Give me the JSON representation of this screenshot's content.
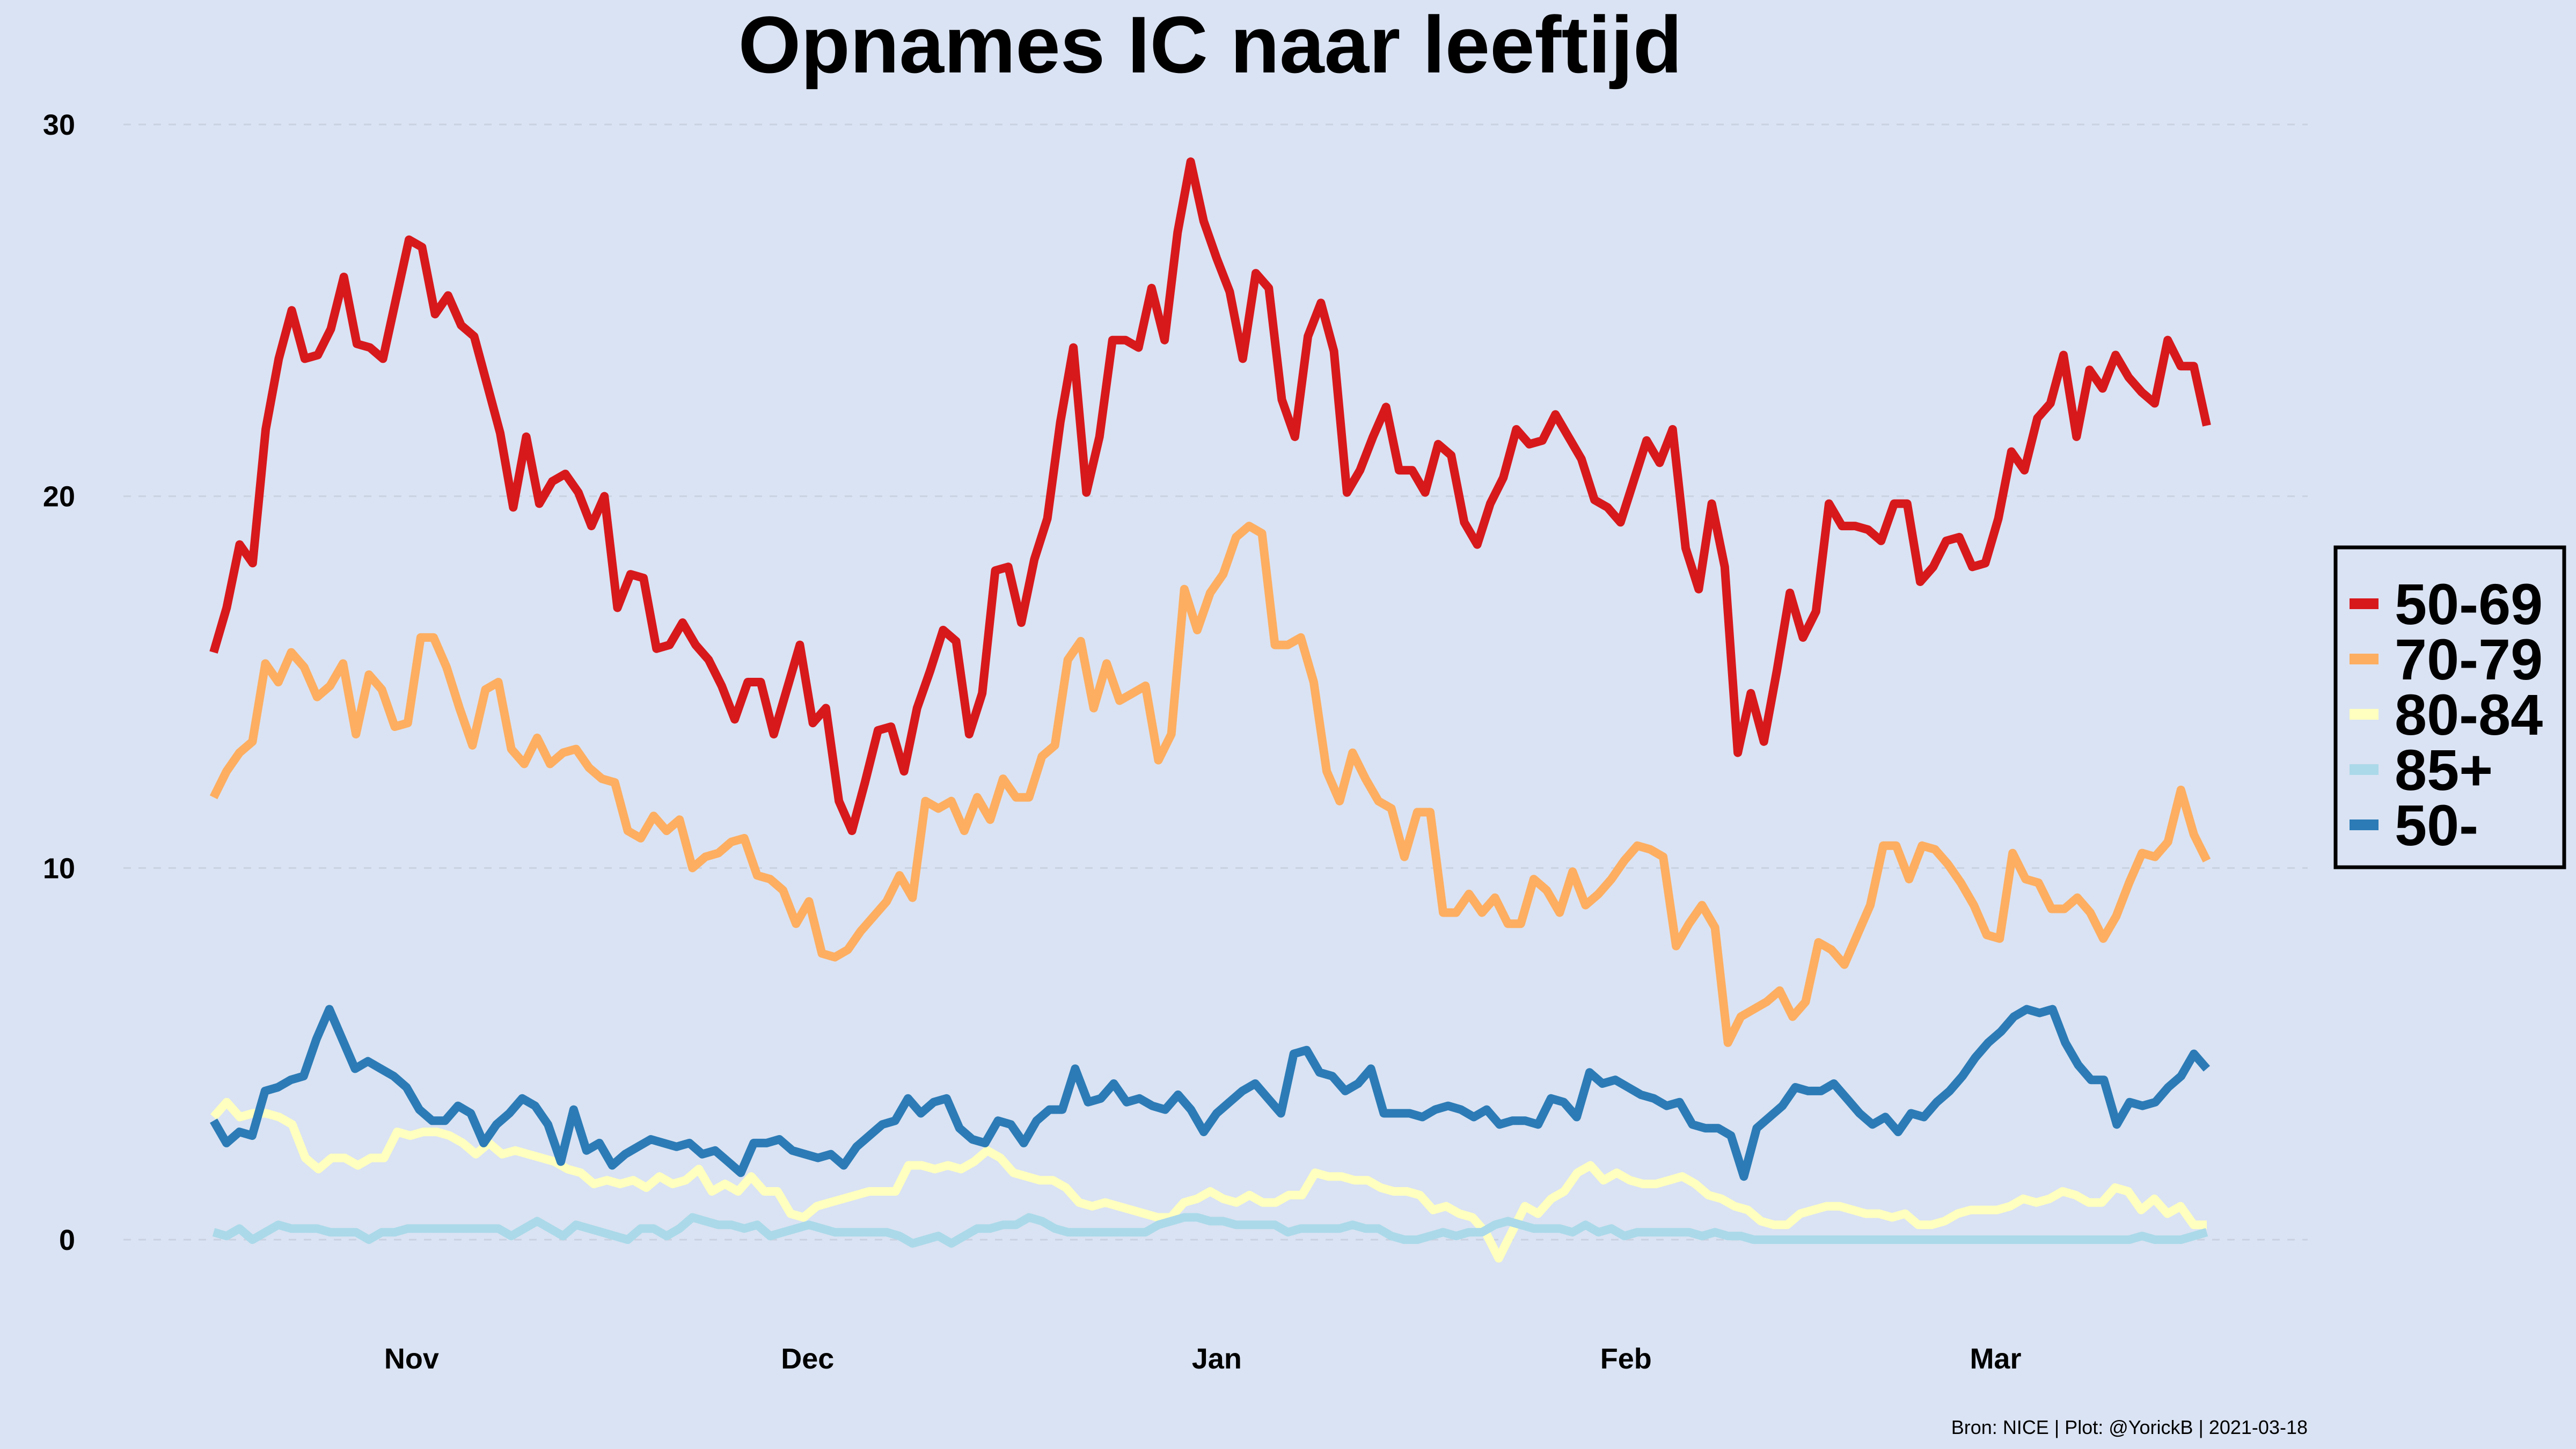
{
  "chart_data": {
    "type": "line",
    "title": "Opnames IC naar leeftijd",
    "caption": "Bron: NICE | Plot: @YorickB  |  2021-03-18",
    "xlabel": "",
    "ylabel": "",
    "ylim": [
      -2,
      32
    ],
    "yticks": [
      0,
      10,
      20,
      30
    ],
    "x_start": "2020-10-17",
    "x_end": "2021-03-17",
    "xticks": [
      {
        "label": "Nov",
        "date": "2020-11-01"
      },
      {
        "label": "Dec",
        "date": "2020-12-01"
      },
      {
        "label": "Jan",
        "date": "2021-01-01"
      },
      {
        "label": "Feb",
        "date": "2021-02-01"
      },
      {
        "label": "Mar",
        "date": "2021-03-01"
      }
    ],
    "grid": "horizontal dashed",
    "legend_position": "right",
    "series": [
      {
        "name": "50-69",
        "color": "#d7191c",
        "values": [
          15.8,
          17.0,
          18.7,
          18.2,
          21.8,
          23.7,
          25.0,
          23.7,
          23.8,
          24.5,
          25.9,
          24.1,
          24.0,
          23.7,
          25.3,
          26.9,
          26.7,
          24.9,
          25.4,
          24.6,
          24.3,
          23.0,
          21.7,
          19.7,
          21.6,
          19.8,
          20.4,
          20.6,
          20.1,
          19.2,
          20.0,
          17.0,
          17.9,
          17.8,
          15.9,
          16.0,
          16.6,
          16.0,
          15.6,
          14.9,
          14.0,
          15.0,
          15.0,
          13.6,
          14.8,
          16.0,
          13.9,
          14.3,
          11.8,
          11.0,
          12.3,
          13.7,
          13.8,
          12.6,
          14.3,
          15.3,
          16.4,
          16.1,
          13.6,
          14.7,
          18.0,
          18.1,
          16.6,
          18.3,
          19.4,
          22.0,
          24.0,
          20.1,
          21.6,
          24.2,
          24.2,
          24.0,
          25.6,
          24.2,
          27.1,
          29.0,
          27.4,
          26.4,
          25.5,
          23.7,
          26.0,
          25.6,
          22.6,
          21.6,
          24.3,
          25.2,
          23.9,
          20.1,
          20.7,
          21.6,
          22.4,
          20.7,
          20.7,
          20.1,
          21.4,
          21.1,
          19.3,
          18.7,
          19.8,
          20.5,
          21.8,
          21.4,
          21.5,
          22.2,
          21.6,
          21.0,
          19.9,
          19.7,
          19.3,
          20.4,
          21.5,
          20.9,
          21.8,
          18.6,
          17.5,
          19.8,
          18.1,
          13.1,
          14.7,
          13.4,
          15.3,
          17.4,
          16.2,
          16.9,
          19.8,
          19.2,
          19.2,
          19.1,
          18.8,
          19.8,
          19.8,
          17.7,
          18.1,
          18.8,
          18.9,
          18.1,
          18.2,
          19.4,
          21.2,
          20.7,
          22.1,
          22.5,
          23.8,
          21.6,
          23.4,
          22.9,
          23.8,
          23.2,
          22.8,
          22.5,
          24.2,
          23.5,
          23.5,
          21.9
        ]
      },
      {
        "name": "70-79",
        "color": "#fdae61",
        "values": [
          11.9,
          12.6,
          13.1,
          13.4,
          15.5,
          15.0,
          15.8,
          15.4,
          14.6,
          14.9,
          15.5,
          13.6,
          15.2,
          14.8,
          13.8,
          13.9,
          16.2,
          16.2,
          15.4,
          14.3,
          13.3,
          14.8,
          15.0,
          13.2,
          12.8,
          13.5,
          12.8,
          13.1,
          13.2,
          12.7,
          12.4,
          12.3,
          11.0,
          10.8,
          11.4,
          11.0,
          11.3,
          10.0,
          10.3,
          10.4,
          10.7,
          10.8,
          9.8,
          9.7,
          9.4,
          8.5,
          9.1,
          7.7,
          7.6,
          7.8,
          8.3,
          8.7,
          9.1,
          9.8,
          9.2,
          11.8,
          11.6,
          11.8,
          11.0,
          11.9,
          11.3,
          12.4,
          11.9,
          11.9,
          13.0,
          13.3,
          15.6,
          16.1,
          14.3,
          15.5,
          14.5,
          14.7,
          14.9,
          12.9,
          13.6,
          17.5,
          16.4,
          17.4,
          17.9,
          18.9,
          19.2,
          19.0,
          16.0,
          16.0,
          16.2,
          15.0,
          12.6,
          11.8,
          13.1,
          12.4,
          11.8,
          11.6,
          10.3,
          11.5,
          11.5,
          8.8,
          8.8,
          9.3,
          8.8,
          9.2,
          8.5,
          8.5,
          9.7,
          9.4,
          8.8,
          9.9,
          9.0,
          9.3,
          9.7,
          10.2,
          10.6,
          10.5,
          10.3,
          7.9,
          8.5,
          9.0,
          8.4,
          5.3,
          6.0,
          6.2,
          6.4,
          6.7,
          6.0,
          6.4,
          8.0,
          7.8,
          7.4,
          8.2,
          9.0,
          10.6,
          10.6,
          9.7,
          10.6,
          10.5,
          10.1,
          9.6,
          9.0,
          8.2,
          8.1,
          10.4,
          9.7,
          9.6,
          8.9,
          8.9,
          9.2,
          8.8,
          8.1,
          8.7,
          9.6,
          10.4,
          10.3,
          10.7,
          12.1,
          10.9,
          10.2
        ]
      },
      {
        "name": "80-84",
        "color": "#ffffbf",
        "values": [
          3.3,
          3.7,
          3.3,
          3.4,
          3.4,
          3.3,
          3.1,
          2.2,
          1.9,
          2.2,
          2.2,
          2.0,
          2.2,
          2.2,
          2.9,
          2.8,
          2.9,
          2.9,
          2.8,
          2.6,
          2.3,
          2.6,
          2.3,
          2.4,
          2.3,
          2.2,
          2.1,
          1.9,
          1.8,
          1.5,
          1.6,
          1.5,
          1.6,
          1.4,
          1.7,
          1.5,
          1.6,
          1.9,
          1.3,
          1.5,
          1.3,
          1.7,
          1.3,
          1.3,
          0.7,
          0.6,
          0.9,
          1.0,
          1.1,
          1.2,
          1.3,
          1.3,
          1.3,
          2.0,
          2.0,
          1.9,
          2.0,
          1.9,
          2.1,
          2.4,
          2.2,
          1.8,
          1.7,
          1.6,
          1.6,
          1.4,
          1.0,
          0.9,
          1.0,
          0.9,
          0.8,
          0.7,
          0.6,
          0.6,
          1.0,
          1.1,
          1.3,
          1.1,
          1.0,
          1.2,
          1.0,
          1.0,
          1.2,
          1.2,
          1.8,
          1.7,
          1.7,
          1.6,
          1.6,
          1.4,
          1.3,
          1.3,
          1.2,
          0.8,
          0.9,
          0.7,
          0.6,
          0.2,
          -0.5,
          0.2,
          0.9,
          0.7,
          1.1,
          1.3,
          1.8,
          2.0,
          1.6,
          1.8,
          1.6,
          1.5,
          1.5,
          1.6,
          1.7,
          1.5,
          1.2,
          1.1,
          0.9,
          0.8,
          0.5,
          0.4,
          0.4,
          0.7,
          0.8,
          0.9,
          0.9,
          0.8,
          0.7,
          0.7,
          0.6,
          0.7,
          0.4,
          0.4,
          0.5,
          0.7,
          0.8,
          0.8,
          0.8,
          0.9,
          1.1,
          1.0,
          1.1,
          1.3,
          1.2,
          1.0,
          1.0,
          1.4,
          1.3,
          0.8,
          1.1,
          0.7,
          0.9,
          0.4,
          0.4
        ]
      },
      {
        "name": "85+",
        "color": "#abd9e9",
        "values": [
          0.2,
          0.1,
          0.3,
          0.0,
          0.2,
          0.4,
          0.3,
          0.3,
          0.3,
          0.2,
          0.2,
          0.2,
          0.0,
          0.2,
          0.2,
          0.3,
          0.3,
          0.3,
          0.3,
          0.3,
          0.3,
          0.3,
          0.3,
          0.1,
          0.3,
          0.5,
          0.3,
          0.1,
          0.4,
          0.3,
          0.2,
          0.1,
          0.0,
          0.3,
          0.3,
          0.1,
          0.3,
          0.6,
          0.5,
          0.4,
          0.4,
          0.3,
          0.4,
          0.1,
          0.2,
          0.3,
          0.4,
          0.3,
          0.2,
          0.2,
          0.2,
          0.2,
          0.2,
          0.1,
          -0.1,
          0.0,
          0.1,
          -0.1,
          0.1,
          0.3,
          0.3,
          0.4,
          0.4,
          0.6,
          0.5,
          0.3,
          0.2,
          0.2,
          0.2,
          0.2,
          0.2,
          0.2,
          0.2,
          0.4,
          0.5,
          0.6,
          0.6,
          0.5,
          0.5,
          0.4,
          0.4,
          0.4,
          0.4,
          0.2,
          0.3,
          0.3,
          0.3,
          0.3,
          0.4,
          0.3,
          0.3,
          0.1,
          0.0,
          0.0,
          0.1,
          0.2,
          0.1,
          0.2,
          0.2,
          0.4,
          0.5,
          0.4,
          0.3,
          0.3,
          0.3,
          0.2,
          0.4,
          0.2,
          0.3,
          0.1,
          0.2,
          0.2,
          0.2,
          0.2,
          0.2,
          0.1,
          0.2,
          0.1,
          0.1,
          0.0,
          0.0,
          0.0,
          0.0,
          0.0,
          0.0,
          0.0,
          0.0,
          0.0,
          0.0,
          0.0,
          0.0,
          0.0,
          0.0,
          0.0,
          0.0,
          0.0,
          0.0,
          0.0,
          0.0,
          0.0,
          0.0,
          0.0,
          0.0,
          0.0,
          0.0,
          0.0,
          0.0,
          0.0,
          0.0,
          0.1,
          0.0,
          0.0,
          0.0,
          0.1,
          0.2
        ]
      },
      {
        "name": "50-",
        "color": "#2c7bb6",
        "values": [
          3.2,
          2.6,
          2.9,
          2.8,
          4.0,
          4.1,
          4.3,
          4.4,
          5.4,
          6.2,
          5.4,
          4.6,
          4.8,
          4.6,
          4.4,
          4.1,
          3.5,
          3.2,
          3.2,
          3.6,
          3.4,
          2.6,
          3.1,
          3.4,
          3.8,
          3.6,
          3.1,
          2.1,
          3.5,
          2.4,
          2.6,
          2.0,
          2.3,
          2.5,
          2.7,
          2.6,
          2.5,
          2.6,
          2.3,
          2.4,
          2.1,
          1.8,
          2.6,
          2.6,
          2.7,
          2.4,
          2.3,
          2.2,
          2.3,
          2.0,
          2.5,
          2.8,
          3.1,
          3.2,
          3.8,
          3.4,
          3.7,
          3.8,
          3.0,
          2.7,
          2.6,
          3.2,
          3.1,
          2.6,
          3.2,
          3.5,
          3.5,
          4.6,
          3.7,
          3.8,
          4.2,
          3.7,
          3.8,
          3.6,
          3.5,
          3.9,
          3.5,
          2.9,
          3.4,
          3.7,
          4.0,
          4.2,
          3.8,
          3.4,
          5.0,
          5.1,
          4.5,
          4.4,
          4.0,
          4.2,
          4.6,
          3.4,
          3.4,
          3.4,
          3.3,
          3.5,
          3.6,
          3.5,
          3.3,
          3.5,
          3.1,
          3.2,
          3.2,
          3.1,
          3.8,
          3.7,
          3.3,
          4.5,
          4.2,
          4.3,
          4.1,
          3.9,
          3.8,
          3.6,
          3.7,
          3.1,
          3.0,
          3.0,
          2.8,
          1.7,
          3.0,
          3.3,
          3.6,
          4.1,
          4.0,
          4.0,
          4.2,
          3.8,
          3.4,
          3.1,
          3.3,
          2.9,
          3.4,
          3.3,
          3.7,
          4.0,
          4.4,
          4.9,
          5.3,
          5.6,
          6.0,
          6.2,
          6.1,
          6.2,
          5.3,
          4.7,
          4.3,
          4.3,
          3.1,
          3.7,
          3.6,
          3.7,
          4.1,
          4.4,
          5.0,
          4.6
        ]
      }
    ]
  }
}
